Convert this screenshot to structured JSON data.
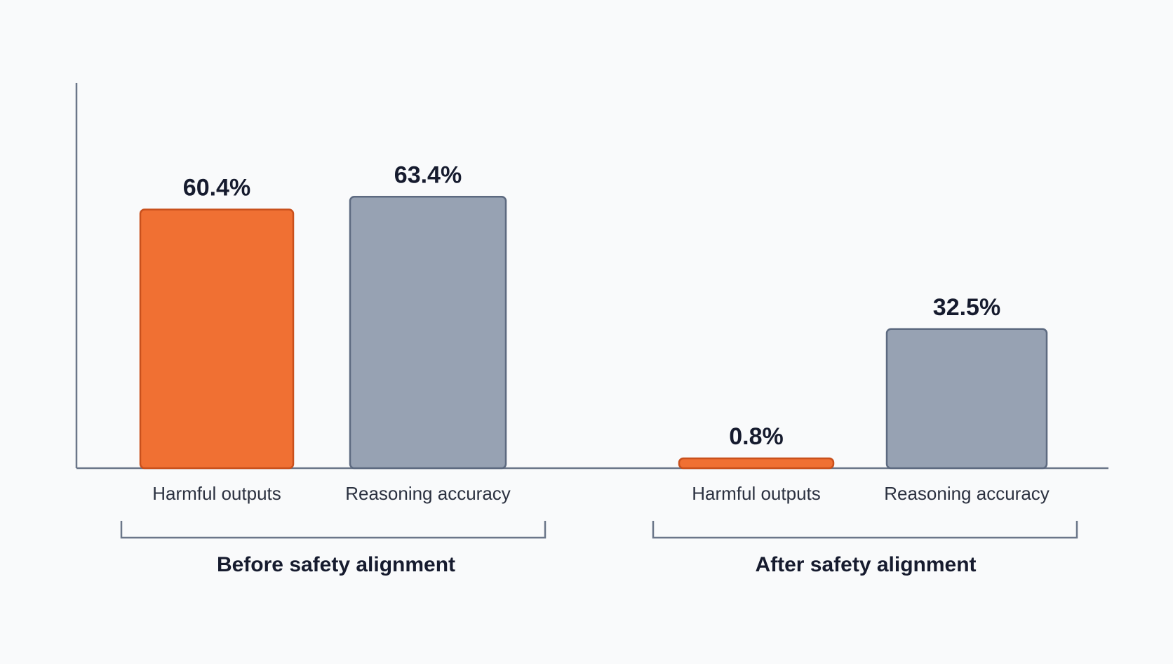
{
  "chart_data": {
    "type": "bar",
    "title": "",
    "xlabel": "",
    "ylabel": "",
    "ylim": [
      0,
      100
    ],
    "grid": false,
    "legend": "none",
    "colors": {
      "harmful": "#f07033",
      "harmful_stroke": "#c9501c",
      "reasoning": "#97a2b3",
      "reasoning_stroke": "#5d6a80",
      "axis": "#6b7689",
      "text": "#161b2e"
    },
    "groups": [
      {
        "label": "Before safety alignment",
        "bars": [
          {
            "category": "Harmful outputs",
            "value": 60.4,
            "value_label": "60.4%",
            "kind": "harmful"
          },
          {
            "category": "Reasoning accuracy",
            "value": 63.4,
            "value_label": "63.4%",
            "kind": "reasoning"
          }
        ]
      },
      {
        "label": "After safety alignment",
        "bars": [
          {
            "category": "Harmful outputs",
            "value": 0.8,
            "value_label": "0.8%",
            "kind": "harmful"
          },
          {
            "category": "Reasoning accuracy",
            "value": 32.5,
            "value_label": "32.5%",
            "kind": "reasoning"
          }
        ]
      }
    ]
  }
}
